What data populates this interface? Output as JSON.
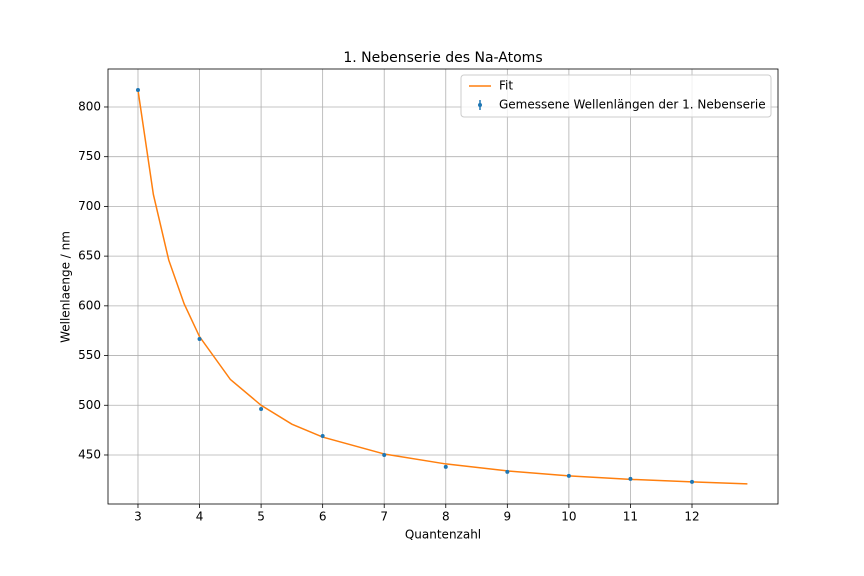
{
  "chart_data": {
    "type": "line",
    "title": "1. Nebenserie des Na-Atoms",
    "xlabel": "Quantenzahl",
    "ylabel": "Wellenlaenge / nm",
    "xlim": [
      2.513,
      13.397
    ],
    "ylim": [
      400.7,
      838.2
    ],
    "xticks": [
      3,
      4,
      5,
      6,
      7,
      8,
      9,
      10,
      11,
      12
    ],
    "yticks": [
      450,
      500,
      550,
      600,
      650,
      700,
      750,
      800
    ],
    "grid": true,
    "legend": "upper right",
    "series": [
      {
        "name": "Fit",
        "color": "#ff7f0e",
        "kind": "line",
        "x": [
          3,
          3.25,
          3.5,
          3.75,
          4,
          4.5,
          5,
          5.5,
          6,
          7,
          8,
          9,
          10,
          11,
          12,
          12.9
        ],
        "values": [
          817,
          712,
          646,
          602,
          569,
          526,
          500,
          481,
          468,
          451,
          441,
          434,
          429,
          425.5,
          423,
          421
        ]
      },
      {
        "name": "Gemessene Wellenlängen der 1. Nebenserie",
        "color": "#1f77b4",
        "kind": "errorbar",
        "x": [
          3,
          4,
          5,
          6,
          7,
          8,
          9,
          10,
          11,
          12
        ],
        "values": [
          817.1,
          566.7,
          496.3,
          469.1,
          450,
          438,
          433,
          429,
          426,
          423
        ]
      }
    ]
  }
}
